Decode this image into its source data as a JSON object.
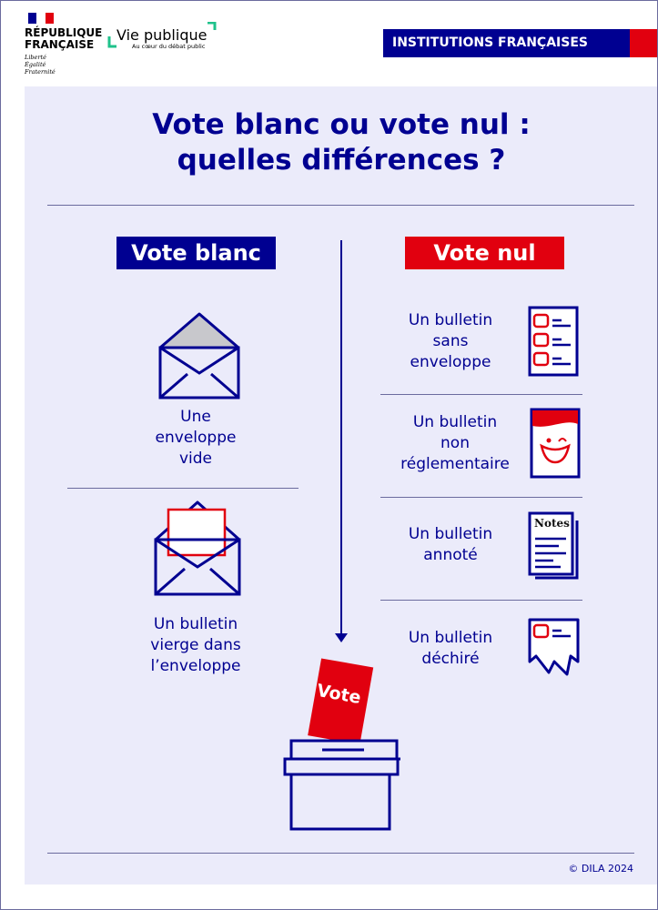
{
  "header": {
    "republique": [
      "RÉPUBLIQUE",
      "FRANÇAISE"
    ],
    "motto": [
      "Liberté",
      "Égalité",
      "Fraternité"
    ],
    "vie_publique": "Vie publique",
    "vie_publique_tagline": "Au cœur du débat public",
    "category": "INSTITUTIONS FRANÇAISES"
  },
  "colors": {
    "navy": "#000091",
    "red": "#e1000f",
    "background": "#ebebfa"
  },
  "title": [
    "Vote blanc ou vote nul :",
    "quelles différences ?"
  ],
  "vote_blanc": {
    "label": "Vote blanc",
    "items": [
      {
        "text": [
          "Une",
          "enveloppe",
          "vide"
        ],
        "icon": "empty-envelope-icon"
      },
      {
        "text": [
          "Un bulletin",
          "vierge dans",
          "l’enveloppe"
        ],
        "icon": "envelope-with-blank-ballot-icon"
      }
    ]
  },
  "vote_nul": {
    "label": "Vote nul",
    "items": [
      {
        "text": [
          "Un bulletin",
          "sans",
          "enveloppe"
        ],
        "icon": "checklist-ballot-icon"
      },
      {
        "text": [
          "Un bulletin",
          "non",
          "réglementaire"
        ],
        "icon": "smiley-ballot-icon"
      },
      {
        "text": [
          "Un bulletin",
          "annoté"
        ],
        "icon": "notes-ballot-icon",
        "icon_text": "Notes"
      },
      {
        "text": [
          "Un bulletin",
          "déchiré"
        ],
        "icon": "torn-ballot-icon"
      }
    ]
  },
  "ballot_box": {
    "ballot_text": "Vote"
  },
  "credit": "© DILA 2024"
}
